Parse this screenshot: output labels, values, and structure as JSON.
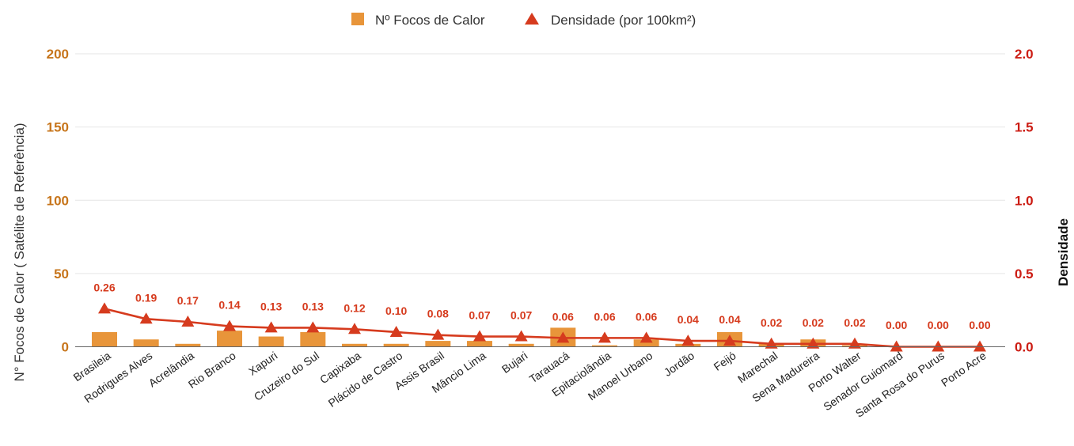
{
  "legend": {
    "bars_label": "Nº Focos de Calor",
    "line_label": "Densidade (por 100km²)"
  },
  "axes": {
    "left_title": "N° Focos de Calor ( Satélite de Referência)",
    "right_title": "Densidade",
    "left_ticks": [
      "0",
      "50",
      "100",
      "150",
      "200"
    ],
    "right_ticks": [
      "0.0",
      "0.5",
      "1.0",
      "1.5",
      "2.0"
    ]
  },
  "colors": {
    "bar": "#e8953a",
    "line": "#d63b1e",
    "left_axis": "#c7751b",
    "right_axis": "#cc1d14",
    "grid": "#e6e6e6",
    "baseline": "#666666"
  },
  "chart_data": {
    "type": "bar",
    "title": "",
    "xlabel": "",
    "ylabel": "N° Focos de Calor ( Satélite de Referência)",
    "y2label": "Densidade",
    "ylim": [
      0,
      200
    ],
    "y2lim": [
      0,
      2.0
    ],
    "grid": true,
    "legend_position": "top-center",
    "categories": [
      "Brasileia",
      "Rodrigues Alves",
      "Acrelândia",
      "Rio Branco",
      "Xapuri",
      "Cruzeiro do Sul",
      "Capixaba",
      "Plácido de Castro",
      "Assis Brasil",
      "Mâncio Lima",
      "Bujari",
      "Tarauacá",
      "Epitaciolândia",
      "Manoel Urbano",
      "Jordão",
      "Feijó",
      "Marechal",
      "Sena Madureira",
      "Porto Walter",
      "Senador Guiomard",
      "Santa Rosa do Purus",
      "Porto Acre"
    ],
    "series": [
      {
        "name": "Nº Focos de Calor",
        "type": "bar",
        "axis": "left",
        "values": [
          10,
          5,
          2,
          11,
          7,
          10,
          2,
          2,
          4,
          4,
          2,
          13,
          1,
          5,
          2,
          10,
          2,
          5,
          1,
          0,
          0,
          0
        ]
      },
      {
        "name": "Densidade (por 100km²)",
        "type": "line",
        "axis": "right",
        "values": [
          0.26,
          0.19,
          0.17,
          0.14,
          0.13,
          0.13,
          0.12,
          0.1,
          0.08,
          0.07,
          0.07,
          0.06,
          0.06,
          0.06,
          0.04,
          0.04,
          0.02,
          0.02,
          0.02,
          0.0,
          0.0,
          0.0
        ],
        "labels": [
          "0.26",
          "0.19",
          "0.17",
          "0.14",
          "0.13",
          "0.13",
          "0.12",
          "0.10",
          "0.08",
          "0.07",
          "0.07",
          "0.06",
          "0.06",
          "0.06",
          "0.04",
          "0.04",
          "0.02",
          "0.02",
          "0.02",
          "0.00",
          "0.00",
          "0.00"
        ]
      }
    ]
  }
}
